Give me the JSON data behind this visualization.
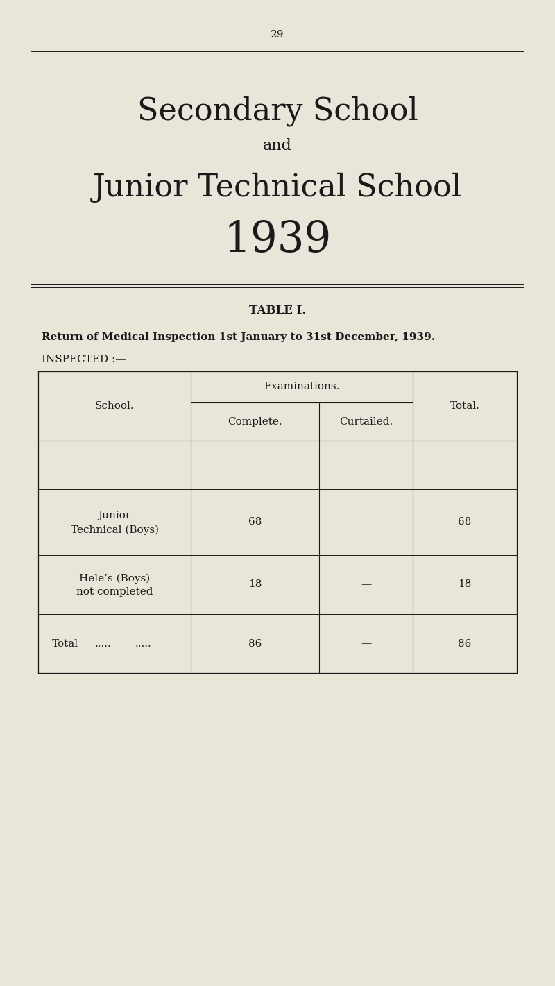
{
  "bg_color": "#e9e5d9",
  "text_color": "#1a1a1a",
  "page_number": "29",
  "title_line1": "Secondary School",
  "title_and": "and",
  "title_line2": "Junior Technical School",
  "title_year": "1939",
  "table_title": "TABLE I.",
  "table_subtitle": "Return of Medical Inspection 1st January to 31st December, 1939.",
  "inspected_label": "INSPECTED :—",
  "col_headers": [
    "School.",
    "Examinations.",
    "Total."
  ],
  "sub_headers": [
    "Complete.",
    "Curtailed."
  ],
  "rows": [
    {
      "school_line1": "Junior",
      "school_line2": "Technical (Boys)",
      "complete": "68",
      "curtailed": "—",
      "total": "68"
    },
    {
      "school_line1": "Hele’s (Boys)",
      "school_line2": "not completed",
      "complete": "18",
      "curtailed": "—",
      "total": "18"
    },
    {
      "school_line1": "Total",
      "school_dots1": ".....",
      "school_dots2": ".....",
      "complete": "86",
      "curtailed": "—",
      "total": "86"
    }
  ],
  "title_fontsize": 32,
  "and_fontsize": 16,
  "year_fontsize": 44,
  "table_title_fontsize": 12,
  "subtitle_fontsize": 11,
  "body_fontsize": 11,
  "header_fontsize": 11,
  "page_num_fontsize": 11
}
